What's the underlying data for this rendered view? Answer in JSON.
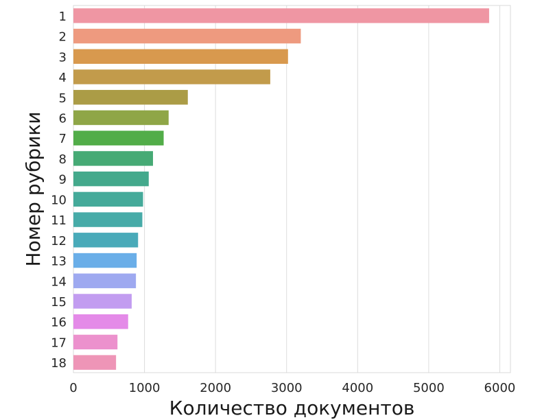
{
  "chart_data": {
    "type": "bar",
    "orientation": "horizontal",
    "categories": [
      "1",
      "2",
      "3",
      "4",
      "5",
      "6",
      "7",
      "8",
      "9",
      "10",
      "11",
      "12",
      "13",
      "14",
      "15",
      "16",
      "17",
      "18"
    ],
    "values": [
      5850,
      3200,
      3020,
      2770,
      1610,
      1340,
      1270,
      1120,
      1060,
      980,
      970,
      910,
      890,
      880,
      820,
      770,
      620,
      600
    ],
    "colors": [
      "#ef96a3",
      "#ee9a7f",
      "#d8994e",
      "#c29b4b",
      "#ab9c46",
      "#8fa647",
      "#52ad49",
      "#46aa75",
      "#44a98c",
      "#45aa9a",
      "#47aba8",
      "#49aab9",
      "#6aaee8",
      "#9ea9f0",
      "#c29cf0",
      "#e48ae8",
      "#ec91cd",
      "#ee95b7"
    ],
    "title": "",
    "xlabel": "Количество документов",
    "ylabel": "Номер рубрики",
    "xlim": [
      0,
      6150
    ],
    "xticks": [
      0,
      1000,
      2000,
      3000,
      4000,
      5000,
      6000
    ],
    "grid": true
  }
}
